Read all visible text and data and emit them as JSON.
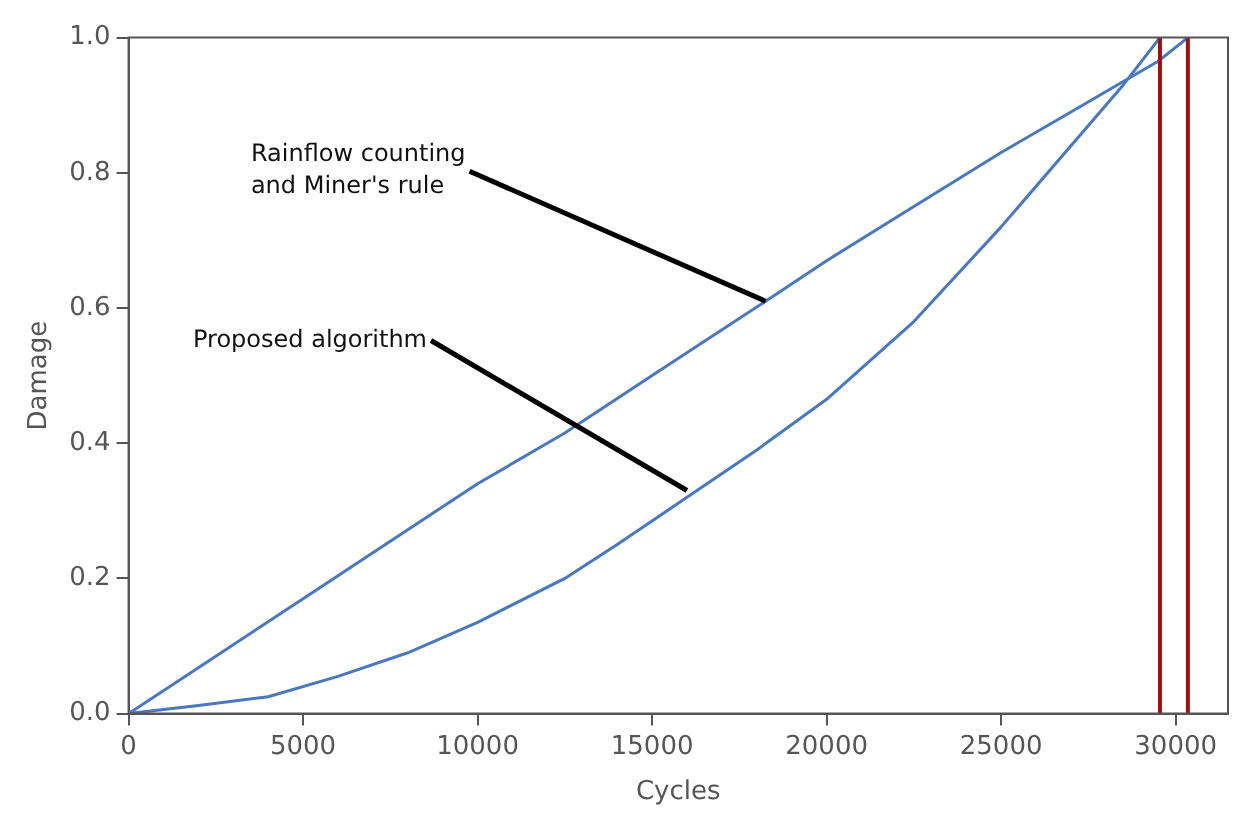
{
  "chart_data": {
    "type": "line",
    "xlabel": "Cycles",
    "ylabel": "Damage",
    "x": [
      0,
      2500,
      5000,
      7500,
      10000,
      12500,
      15000,
      18250,
      20000,
      22500,
      25000,
      27000,
      28500,
      29500,
      30350
    ],
    "series": [
      {
        "color": "#4a78c0",
        "values": [
          0,
          0.085,
          0.17,
          0.255,
          0.34,
          0.415,
          0.5,
          0.61,
          0.67,
          0.75,
          0.83,
          0.89,
          0.935,
          0.965,
          1.0
        ]
      },
      {
        "color": "#4a78c0",
        "x": [
          0,
          2000,
          4000,
          6000,
          8000,
          10000,
          12500,
          14000,
          16000,
          18000,
          20000,
          22500,
          25000,
          27500,
          28500,
          29550
        ],
        "values": [
          0,
          0.012,
          0.025,
          0.055,
          0.09,
          0.135,
          0.2,
          0.25,
          0.32,
          0.39,
          0.465,
          0.58,
          0.72,
          0.87,
          0.93,
          1.0
        ]
      }
    ],
    "xlim": [
      0,
      31500
    ],
    "ylim": [
      0,
      1
    ],
    "xticks": [
      0,
      5000,
      10000,
      15000,
      20000,
      25000,
      30000
    ],
    "yticks": [
      {
        "value": 0,
        "label": "0.0"
      },
      {
        "value": 0.2,
        "label": "0.2"
      },
      {
        "value": 0.4,
        "label": "0.4"
      },
      {
        "value": 0.6,
        "label": "0.6"
      },
      {
        "value": 0.8,
        "label": "0.8"
      },
      {
        "value": 1,
        "label": "1.0"
      }
    ],
    "ref_lines": [
      {
        "axis": "x",
        "value": 29550,
        "color": "#a01010"
      },
      {
        "axis": "x",
        "value": 30350,
        "color": "#a01010"
      }
    ],
    "annotations": [
      {
        "text": "Rainflow counting\nand Miner's rule",
        "x": 18250,
        "y": 0.61
      },
      {
        "text": "Proposed algorithm",
        "x": 16000,
        "y": 0.33
      }
    ],
    "grid": false,
    "legend": false,
    "marker": "none",
    "line_style": "solid"
  }
}
